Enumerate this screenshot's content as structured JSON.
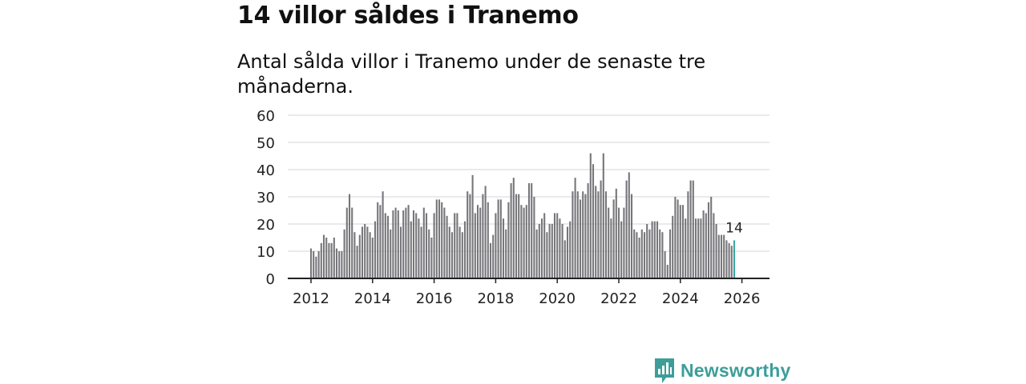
{
  "title": "14 villor såldes i Tranemo",
  "subtitle": "Antal sålda villor i Tranemo under de senaste tre månaderna.",
  "brand": {
    "name": "Newsworthy",
    "icon": "newsworthy-logo-icon",
    "color": "#3d9e99"
  },
  "chart_data": {
    "type": "bar",
    "title": "",
    "xlabel": "",
    "ylabel": "",
    "ylim": [
      0,
      60
    ],
    "yticks": [
      0,
      10,
      20,
      30,
      40,
      50,
      60
    ],
    "xticks": [
      "2012",
      "2014",
      "2016",
      "2018",
      "2020",
      "2022",
      "2024",
      "2026"
    ],
    "x_start": 2012,
    "bar_color": "#77767b",
    "highlight_color": "#3aa8a2",
    "highlight_label": "14",
    "values": [
      11,
      10,
      8,
      10,
      13,
      16,
      15,
      13,
      13,
      15,
      11,
      10,
      10,
      18,
      26,
      31,
      26,
      17,
      12,
      16,
      19,
      20,
      19,
      17,
      15,
      21,
      28,
      27,
      32,
      24,
      23,
      18,
      25,
      26,
      25,
      19,
      25,
      26,
      27,
      21,
      25,
      24,
      22,
      19,
      26,
      24,
      18,
      15,
      24,
      29,
      29,
      28,
      26,
      23,
      19,
      17,
      24,
      24,
      19,
      17,
      21,
      32,
      31,
      38,
      24,
      27,
      26,
      31,
      34,
      28,
      13,
      16,
      24,
      29,
      29,
      22,
      18,
      28,
      35,
      37,
      31,
      31,
      27,
      26,
      27,
      35,
      35,
      30,
      18,
      20,
      22,
      24,
      17,
      20,
      20,
      24,
      24,
      22,
      20,
      14,
      19,
      21,
      32,
      37,
      32,
      29,
      32,
      31,
      35,
      46,
      42,
      34,
      32,
      36,
      46,
      32,
      26,
      22,
      29,
      33,
      26,
      21,
      26,
      36,
      39,
      31,
      18,
      17,
      15,
      18,
      17,
      20,
      18,
      21,
      21,
      21,
      18,
      17,
      10,
      5,
      18,
      23,
      30,
      29,
      27,
      27,
      22,
      32,
      36,
      36,
      22,
      22,
      22,
      25,
      24,
      28,
      30,
      24,
      20,
      16,
      16,
      16,
      14,
      13,
      12,
      14
    ]
  }
}
